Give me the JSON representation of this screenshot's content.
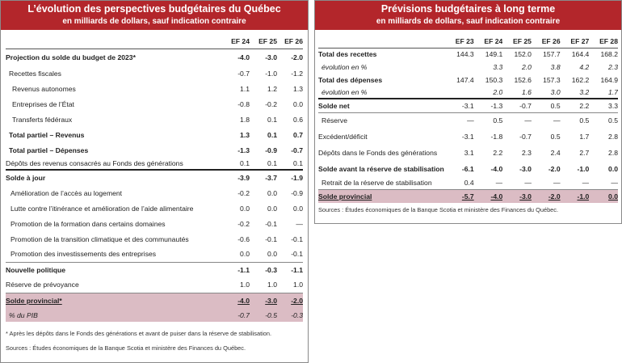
{
  "left": {
    "title": "L’évolution des perspectives budgétaires du Québec",
    "subtitle": "en milliards de dollars, sauf indication contraire",
    "columns": [
      "EF 24",
      "EF 25",
      "EF 26"
    ],
    "rows": [
      {
        "label": "Projection du solde du budget de 2023*",
        "values": [
          "-4.0",
          "-3.0",
          "-2.0"
        ]
      },
      {
        "label": "Recettes fiscales",
        "values": [
          "-0.7",
          "-1.0",
          "-1.2"
        ]
      },
      {
        "label": "Revenus autonomes",
        "values": [
          "1.1",
          "1.2",
          "1.3"
        ]
      },
      {
        "label": "Entreprises de l’État",
        "values": [
          "-0.8",
          "-0.2",
          "0.0"
        ]
      },
      {
        "label": "Transferts fédéraux",
        "values": [
          "1.8",
          "0.1",
          "0.6"
        ]
      },
      {
        "label": "Total partiel – Revenus",
        "values": [
          "1.3",
          "0.1",
          "0.7"
        ]
      },
      {
        "label": "Total partiel – Dépenses",
        "values": [
          "-1.3",
          "-0.9",
          "-0.7"
        ]
      },
      {
        "label": "Dépôts des revenus consacrés au Fonds des générations",
        "values": [
          "0.1",
          "0.1",
          "0.1"
        ]
      },
      {
        "label": "Solde à jour",
        "values": [
          "-3.9",
          "-3.7",
          "-1.9"
        ]
      },
      {
        "label": "Amélioration de l’accès au logement",
        "values": [
          "-0.2",
          "0.0",
          "-0.9"
        ]
      },
      {
        "label": "Lutte contre l’itinérance et amélioration de l’aide alimentaire",
        "values": [
          "0.0",
          "0.0",
          "0.0"
        ]
      },
      {
        "label": "Promotion de la formation dans certains domaines",
        "values": [
          "-0.2",
          "-0.1",
          "—"
        ]
      },
      {
        "label": "Promotion de la transition climatique et des communautés",
        "values": [
          "-0.6",
          "-0.1",
          "-0.1"
        ]
      },
      {
        "label": "Promotion des investissements des entreprises",
        "values": [
          "0.0",
          "0.0",
          "-0.1"
        ]
      },
      {
        "label": "Nouvelle politique",
        "values": [
          "-1.1",
          "-0.3",
          "-1.1"
        ]
      },
      {
        "label": "Réserve de prévoyance",
        "values": [
          "1.0",
          "1.0",
          "1.0"
        ]
      },
      {
        "label": "Solde provincial*",
        "values": [
          "-4.0",
          "-3.0",
          "-2.0"
        ]
      },
      {
        "label": "% du PIB",
        "values": [
          "-0.7",
          "-0.5",
          "-0.3"
        ]
      }
    ],
    "footnote": "* Après les dépôts dans le Fonds des générations et avant de puiser dans la réserve de stabilisation.",
    "source": "Sources : Études économiques de la Banque Scotia et ministère des Finances du Québec."
  },
  "right": {
    "title": "Prévisions budgétaires à long terme",
    "subtitle": "en milliards de dollars, sauf indication contraire",
    "columns": [
      "EF 23",
      "EF 24",
      "EF 25",
      "EF 26",
      "EF 27",
      "EF 28"
    ],
    "rows": [
      {
        "label": "Total des recettes",
        "values": [
          "144.3",
          "149.1",
          "152.0",
          "157.7",
          "164.4",
          "168.2"
        ]
      },
      {
        "label": "évolution en %",
        "values": [
          "",
          "3.3",
          "2.0",
          "3.8",
          "4.2",
          "2.3"
        ]
      },
      {
        "label": "Total des dépenses",
        "values": [
          "147.4",
          "150.3",
          "152.6",
          "157.3",
          "162.2",
          "164.9"
        ]
      },
      {
        "label": "évolution en %",
        "values": [
          "",
          "2.0",
          "1.6",
          "3.0",
          "3.2",
          "1.7"
        ]
      },
      {
        "label": "Solde net",
        "values": [
          "-3.1",
          "-1.3",
          "-0.7",
          "0.5",
          "2.2",
          "3.3"
        ]
      },
      {
        "label": "Réserve",
        "values": [
          "—",
          "0.5",
          "—",
          "—",
          "0.5",
          "0.5"
        ]
      },
      {
        "label": "Excédent/déficit",
        "values": [
          "-3.1",
          "-1.8",
          "-0.7",
          "0.5",
          "1.7",
          "2.8"
        ]
      },
      {
        "label": "Dépôts dans le Fonds des générations",
        "values": [
          "3.1",
          "2.2",
          "2.3",
          "2.4",
          "2.7",
          "2.8"
        ]
      },
      {
        "label": "Solde avant la réserve de stabilisation",
        "values": [
          "-6.1",
          "-4.0",
          "-3.0",
          "-2.0",
          "-1.0",
          "0.0"
        ]
      },
      {
        "label": "Retrait de la réserve de stabilisation",
        "values": [
          "0.4",
          "—",
          "—",
          "—",
          "—",
          "—"
        ]
      },
      {
        "label": "Solde provincial",
        "values": [
          "-5.7",
          "-4.0",
          "-3.0",
          "-2.0",
          "-1.0",
          "0.0"
        ]
      }
    ],
    "source": "Sources : Études économiques de la Banque Scotia et ministère des Finances du Québec."
  }
}
